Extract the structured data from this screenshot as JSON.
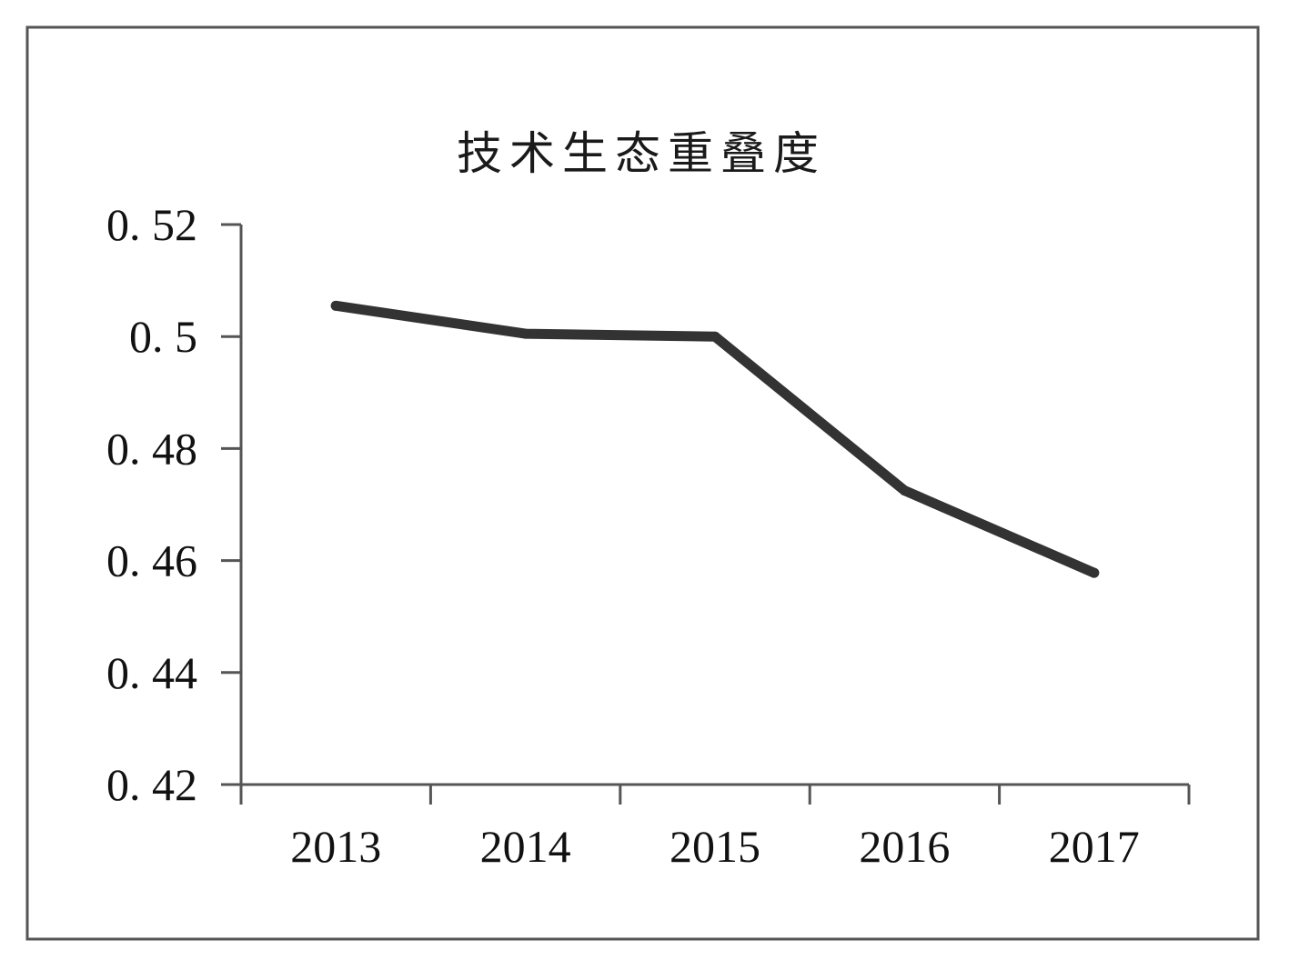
{
  "chart_data": {
    "type": "line",
    "title": "技术生态重叠度",
    "categories": [
      "2013",
      "2014",
      "2015",
      "2016",
      "2017"
    ],
    "series": [
      {
        "values": [
          0.5055,
          0.5005,
          0.5,
          0.4725,
          0.4578
        ]
      }
    ],
    "y_ticks": [
      0.52,
      0.5,
      0.48,
      0.46,
      0.44,
      0.42
    ],
    "y_tick_labels": [
      "0. 52",
      "0. 5",
      "0. 48",
      "0. 46",
      "0. 44",
      "0. 42"
    ],
    "ylim": [
      0.42,
      0.52
    ],
    "xlabel": "",
    "ylabel": "",
    "grid": false,
    "legend": "none",
    "colors": {
      "line": "#333333",
      "axis": "#555555",
      "frame": "#555555"
    }
  }
}
